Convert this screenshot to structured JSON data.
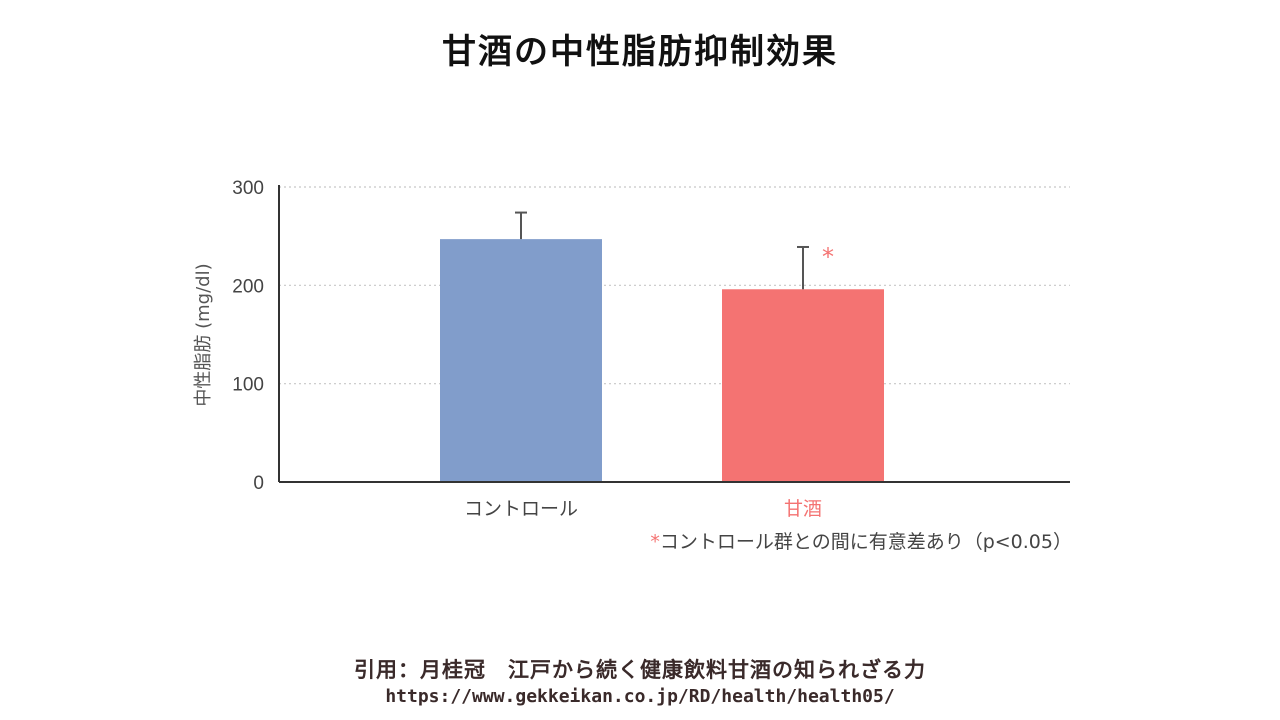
{
  "title": "甘酒の中性脂肪抑制効果",
  "chart_data": {
    "type": "bar",
    "categories": [
      "コントロール",
      "甘酒"
    ],
    "values": [
      247,
      196
    ],
    "errors": [
      27,
      43
    ],
    "colors": [
      "#819dcb",
      "#f47372"
    ],
    "label_colors": [
      "#444444",
      "#f47372"
    ],
    "significance_marker": {
      "category": "甘酒",
      "symbol": "*",
      "color": "#f47372"
    },
    "ylabel": "中性脂肪 (mg/dl)",
    "ylim": [
      0,
      300
    ],
    "yticks": [
      "0",
      "100",
      "200",
      "300"
    ],
    "grid": "horizontal dotted",
    "annotation": {
      "marker": "*",
      "text": "コントロール群との間に有意差あり（p<0.05）"
    }
  },
  "citation": {
    "line": "引用：月桂冠　江戸から続く健康飲料甘酒の知られざる力",
    "url": "https://www.gekkeikan.co.jp/RD/health/health05/"
  }
}
